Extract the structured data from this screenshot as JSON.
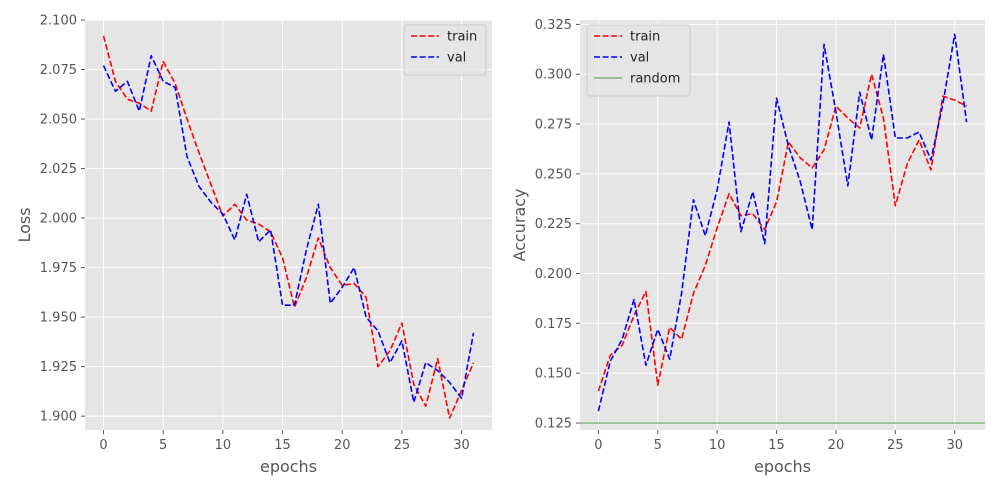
{
  "chart_data": [
    {
      "type": "line",
      "xlabel": "epochs",
      "ylabel": "Loss",
      "xlim": [
        -1.55,
        32.55
      ],
      "ylim": [
        1.893,
        2.1
      ],
      "xticks": [
        0,
        5,
        10,
        15,
        20,
        25,
        30
      ],
      "yticks": [
        1.9,
        1.925,
        1.95,
        1.975,
        2.0,
        2.025,
        2.05,
        2.075,
        2.1
      ],
      "ytick_labels": [
        "1.900",
        "1.925",
        "1.950",
        "1.975",
        "2.000",
        "2.025",
        "2.050",
        "2.075",
        "2.100"
      ],
      "grid": true,
      "legend_position": "top-right",
      "x": [
        0,
        1,
        2,
        3,
        4,
        5,
        6,
        7,
        8,
        9,
        10,
        11,
        12,
        13,
        14,
        15,
        16,
        17,
        18,
        19,
        20,
        21,
        22,
        23,
        24,
        25,
        26,
        27,
        28,
        29,
        30,
        31
      ],
      "series": [
        {
          "name": "train",
          "color": "#ff0000",
          "style": "dashed",
          "values": [
            2.092,
            2.069,
            2.06,
            2.058,
            2.054,
            2.079,
            2.068,
            2.05,
            2.033,
            2.017,
            2.001,
            2.007,
            1.999,
            1.997,
            1.993,
            1.98,
            1.955,
            1.97,
            1.99,
            1.975,
            1.966,
            1.967,
            1.96,
            1.925,
            1.933,
            1.947,
            1.916,
            1.905,
            1.929,
            1.899,
            1.913,
            1.927
          ]
        },
        {
          "name": "val",
          "color": "#0000ff",
          "style": "dashed",
          "values": [
            2.077,
            2.064,
            2.069,
            2.054,
            2.082,
            2.069,
            2.066,
            2.031,
            2.016,
            2.008,
            2.002,
            1.989,
            2.012,
            1.988,
            1.994,
            1.956,
            1.956,
            1.984,
            2.007,
            1.957,
            1.965,
            1.975,
            1.95,
            1.943,
            1.927,
            1.938,
            1.907,
            1.927,
            1.923,
            1.917,
            1.909,
            1.942
          ]
        }
      ]
    },
    {
      "type": "line",
      "xlabel": "epochs",
      "ylabel": "Accuracy",
      "xlim": [
        -1.55,
        32.55
      ],
      "ylim": [
        0.1215,
        0.3272
      ],
      "xticks": [
        0,
        5,
        10,
        15,
        20,
        25,
        30
      ],
      "yticks": [
        0.125,
        0.15,
        0.175,
        0.2,
        0.225,
        0.25,
        0.275,
        0.3,
        0.325
      ],
      "ytick_labels": [
        "0.125",
        "0.150",
        "0.175",
        "0.200",
        "0.225",
        "0.250",
        "0.275",
        "0.300",
        "0.325"
      ],
      "grid": true,
      "legend_position": "top-left",
      "x": [
        0,
        1,
        2,
        3,
        4,
        5,
        6,
        7,
        8,
        9,
        10,
        11,
        12,
        13,
        14,
        15,
        16,
        17,
        18,
        19,
        20,
        21,
        22,
        23,
        24,
        25,
        26,
        27,
        28,
        29,
        30,
        31
      ],
      "series": [
        {
          "name": "train",
          "color": "#ff0000",
          "style": "dashed",
          "values": [
            0.141,
            0.159,
            0.164,
            0.179,
            0.191,
            0.144,
            0.173,
            0.167,
            0.19,
            0.204,
            0.223,
            0.24,
            0.229,
            0.23,
            0.222,
            0.236,
            0.266,
            0.258,
            0.253,
            0.262,
            0.284,
            0.278,
            0.273,
            0.3,
            0.278,
            0.234,
            0.255,
            0.267,
            0.252,
            0.289,
            0.287,
            0.284
          ]
        },
        {
          "name": "val",
          "color": "#0000ff",
          "style": "dashed",
          "values": [
            0.131,
            0.156,
            0.167,
            0.187,
            0.154,
            0.172,
            0.157,
            0.19,
            0.237,
            0.219,
            0.242,
            0.276,
            0.221,
            0.241,
            0.215,
            0.288,
            0.264,
            0.246,
            0.222,
            0.315,
            0.281,
            0.244,
            0.291,
            0.267,
            0.31,
            0.268,
            0.268,
            0.271,
            0.257,
            0.285,
            0.32,
            0.276
          ]
        },
        {
          "name": "random",
          "color": "#77b877",
          "style": "solid",
          "values": [
            0.125,
            0.125,
            0.125,
            0.125,
            0.125,
            0.125,
            0.125,
            0.125,
            0.125,
            0.125,
            0.125,
            0.125,
            0.125,
            0.125,
            0.125,
            0.125,
            0.125,
            0.125,
            0.125,
            0.125,
            0.125,
            0.125,
            0.125,
            0.125,
            0.125,
            0.125,
            0.125,
            0.125,
            0.125,
            0.125,
            0.125,
            0.125
          ]
        }
      ]
    }
  ]
}
